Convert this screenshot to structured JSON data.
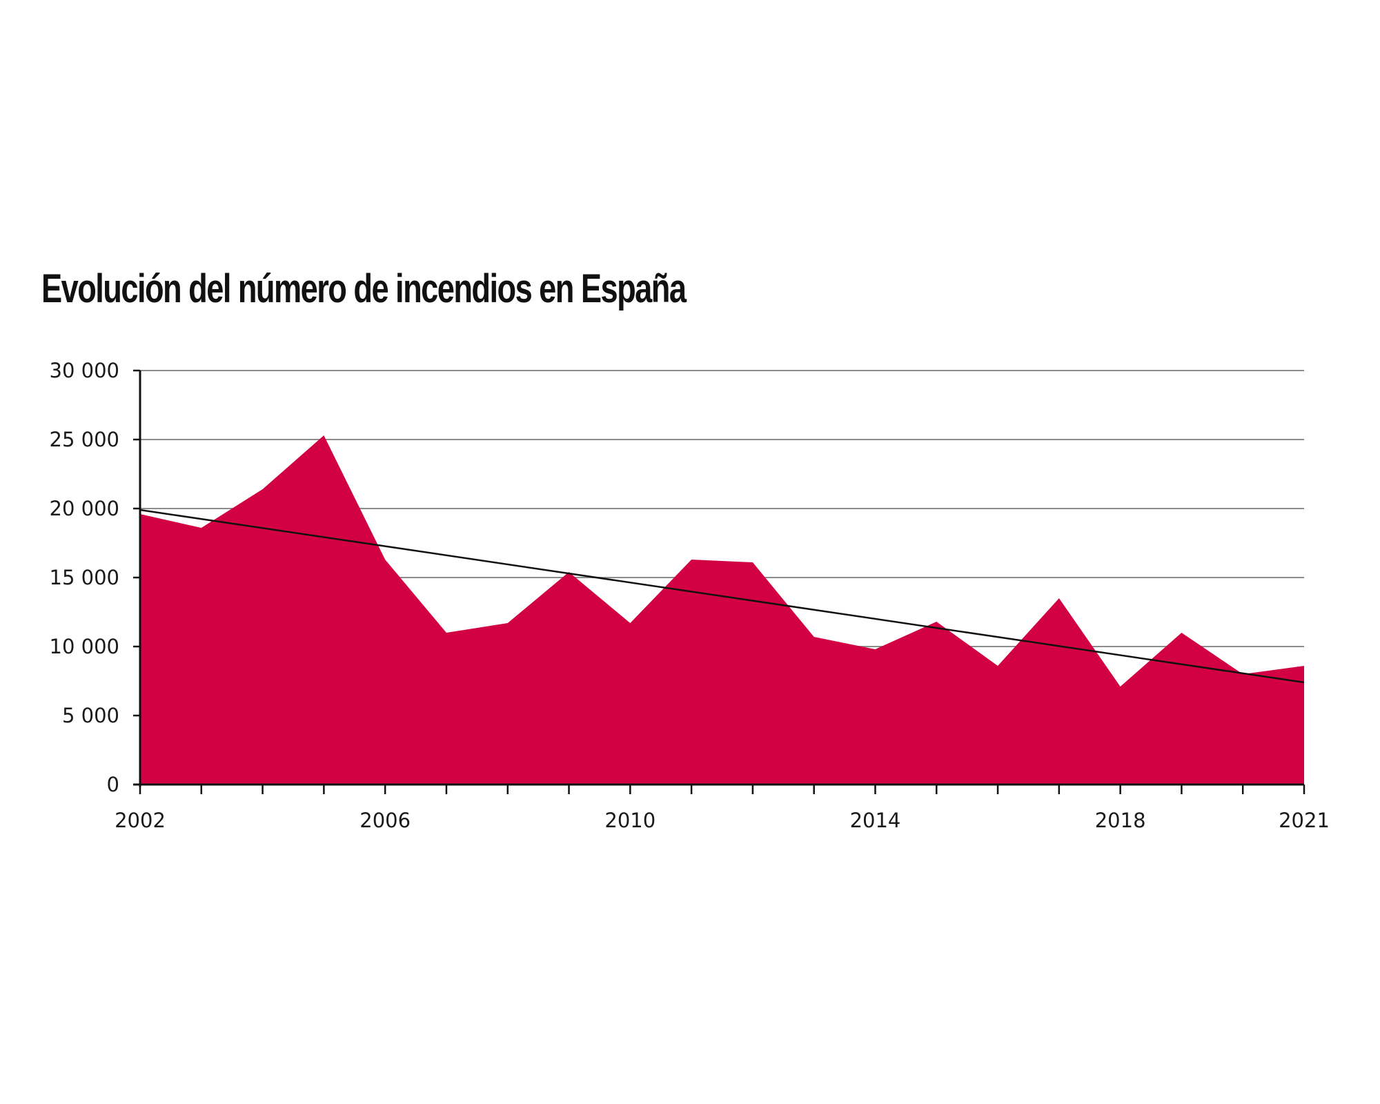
{
  "chart_data": {
    "type": "area",
    "title": "Evolución del número de incendios en España",
    "xlabel": "",
    "ylabel": "",
    "x": [
      2002,
      2003,
      2004,
      2005,
      2006,
      2007,
      2008,
      2009,
      2010,
      2011,
      2012,
      2013,
      2014,
      2015,
      2016,
      2017,
      2018,
      2019,
      2020,
      2021
    ],
    "series": [
      {
        "values": [
          19600,
          18600,
          21400,
          25300,
          16300,
          11000,
          11700,
          15400,
          11700,
          16300,
          16100,
          10700,
          9800,
          11800,
          8600,
          13500,
          7100,
          11000,
          8000,
          8600
        ],
        "color": "#d20144"
      }
    ],
    "trend_line": {
      "start": [
        2002,
        19900
      ],
      "end": [
        2021,
        7400
      ],
      "color": "#111111"
    },
    "x_tick_labels": [
      "2002",
      "2006",
      "2010",
      "2014",
      "2018",
      "2021"
    ],
    "y_tick_labels": [
      "0",
      "5 000",
      "10 000",
      "15 000",
      "20 000",
      "25 000",
      "30 000"
    ],
    "y_ticks": [
      0,
      5000,
      10000,
      15000,
      20000,
      25000,
      30000
    ],
    "xlim": [
      2002,
      2021
    ],
    "ylim": [
      0,
      30000
    ],
    "grid": true,
    "legend": "none"
  }
}
